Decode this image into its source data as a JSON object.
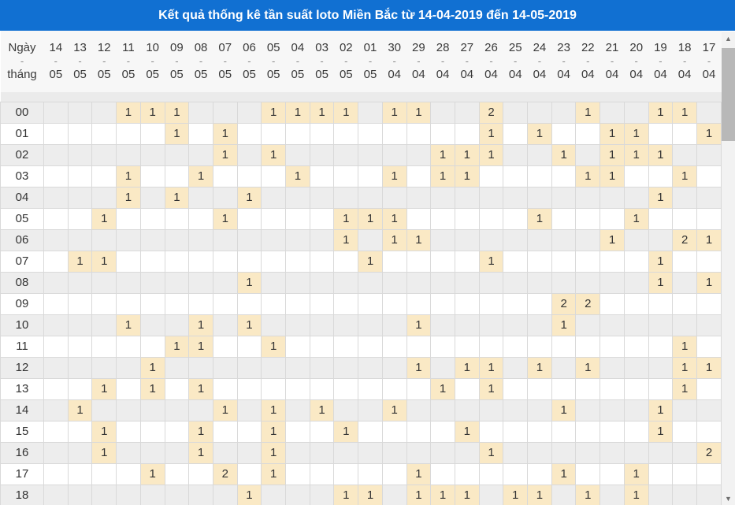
{
  "title": "Kết quả thống kê tần suất loto Miền Bắc từ 14-04-2019 đến 14-05-2019",
  "colors": {
    "titlebar_blue": "#1170d2",
    "highlight_beige": "#fae9c5",
    "red_number": "#e00000",
    "row_alt_gray": "#ededed",
    "grid_line": "#d9d9d9"
  },
  "table": {
    "corner": {
      "top": "Ngày",
      "separator": "-",
      "bottom": "tháng"
    },
    "date_columns": [
      {
        "day": "14",
        "month": "05"
      },
      {
        "day": "13",
        "month": "05"
      },
      {
        "day": "12",
        "month": "05"
      },
      {
        "day": "11",
        "month": "05"
      },
      {
        "day": "10",
        "month": "05"
      },
      {
        "day": "09",
        "month": "05"
      },
      {
        "day": "08",
        "month": "05"
      },
      {
        "day": "07",
        "month": "05"
      },
      {
        "day": "06",
        "month": "05"
      },
      {
        "day": "05",
        "month": "05"
      },
      {
        "day": "04",
        "month": "05"
      },
      {
        "day": "03",
        "month": "05"
      },
      {
        "day": "02",
        "month": "05"
      },
      {
        "day": "01",
        "month": "05"
      },
      {
        "day": "30",
        "month": "04"
      },
      {
        "day": "29",
        "month": "04"
      },
      {
        "day": "28",
        "month": "04"
      },
      {
        "day": "27",
        "month": "04"
      },
      {
        "day": "26",
        "month": "04"
      },
      {
        "day": "25",
        "month": "04"
      },
      {
        "day": "24",
        "month": "04"
      },
      {
        "day": "23",
        "month": "04"
      },
      {
        "day": "22",
        "month": "04"
      },
      {
        "day": "21",
        "month": "04"
      },
      {
        "day": "20",
        "month": "04"
      },
      {
        "day": "19",
        "month": "04"
      },
      {
        "day": "18",
        "month": "04"
      },
      {
        "day": "17",
        "month": "04"
      }
    ],
    "red_marker_prefix": "r",
    "rows": [
      {
        "label": "00",
        "cells": [
          "",
          "",
          "",
          "r1",
          "1",
          "1",
          "",
          "",
          "",
          "r1",
          "1",
          "1",
          "1",
          "",
          "1",
          "1",
          "",
          "",
          "2",
          "",
          "",
          "",
          "1",
          "",
          "",
          "1",
          "1",
          ""
        ]
      },
      {
        "label": "01",
        "cells": [
          "",
          "",
          "",
          "",
          "",
          "1",
          "",
          "1",
          "",
          "",
          "",
          "",
          "",
          "",
          "",
          "",
          "",
          "",
          "1",
          "",
          "1",
          "",
          "",
          "1",
          "1",
          "",
          "",
          "1"
        ]
      },
      {
        "label": "02",
        "cells": [
          "",
          "",
          "",
          "",
          "",
          "",
          "",
          "1",
          "",
          "1",
          "",
          "",
          "",
          "",
          "",
          "",
          "1",
          "1",
          "r1",
          "",
          "",
          "1",
          "",
          "1",
          "1",
          "1",
          "",
          ""
        ]
      },
      {
        "label": "03",
        "cells": [
          "",
          "",
          "",
          "1",
          "",
          "",
          "1",
          "",
          "",
          "",
          "1",
          "",
          "",
          "",
          "1",
          "",
          "1",
          "1",
          "",
          "",
          "",
          "",
          "1",
          "r1",
          "",
          "",
          "1",
          ""
        ]
      },
      {
        "label": "04",
        "cells": [
          "",
          "",
          "",
          "1",
          "",
          "1",
          "",
          "",
          "1",
          "",
          "",
          "",
          "",
          "",
          "",
          "",
          "",
          "",
          "",
          "",
          "",
          "",
          "",
          "",
          "",
          "1",
          "",
          ""
        ]
      },
      {
        "label": "05",
        "cells": [
          "",
          "",
          "1",
          "",
          "",
          "",
          "",
          "1",
          "",
          "",
          "",
          "",
          "1",
          "1",
          "1",
          "",
          "",
          "",
          "",
          "",
          "1",
          "",
          "",
          "",
          "1",
          "",
          "",
          ""
        ]
      },
      {
        "label": "06",
        "cells": [
          "",
          "",
          "",
          "",
          "",
          "",
          "",
          "",
          "",
          "",
          "",
          "",
          "1",
          "",
          "r1",
          "1",
          "",
          "",
          "",
          "",
          "",
          "",
          "",
          "1",
          "",
          "",
          "2",
          "1"
        ]
      },
      {
        "label": "07",
        "cells": [
          "",
          "1",
          "1",
          "",
          "",
          "",
          "",
          "",
          "",
          "",
          "",
          "",
          "",
          "1",
          "",
          "",
          "",
          "",
          "1",
          "",
          "",
          "",
          "",
          "",
          "",
          "1",
          "",
          ""
        ]
      },
      {
        "label": "08",
        "cells": [
          "",
          "",
          "",
          "",
          "",
          "",
          "",
          "",
          "1",
          "",
          "",
          "",
          "",
          "",
          "",
          "",
          "",
          "",
          "",
          "",
          "",
          "",
          "",
          "",
          "",
          "1",
          "",
          "1"
        ]
      },
      {
        "label": "09",
        "cells": [
          "",
          "",
          "",
          "",
          "",
          "",
          "",
          "",
          "",
          "",
          "",
          "",
          "",
          "",
          "",
          "",
          "",
          "",
          "",
          "",
          "",
          "2",
          "2",
          "",
          "",
          "",
          "",
          ""
        ]
      },
      {
        "label": "10",
        "cells": [
          "",
          "",
          "",
          "1",
          "",
          "",
          "1",
          "",
          "1",
          "",
          "",
          "",
          "",
          "",
          "",
          "1",
          "",
          "",
          "",
          "",
          "",
          "1",
          "",
          "",
          "",
          "",
          "",
          ""
        ]
      },
      {
        "label": "11",
        "cells": [
          "",
          "",
          "",
          "",
          "",
          "1",
          "1",
          "",
          "",
          "1",
          "",
          "",
          "",
          "",
          "",
          "",
          "",
          "",
          "",
          "",
          "",
          "",
          "",
          "",
          "",
          "",
          "1",
          ""
        ]
      },
      {
        "label": "12",
        "cells": [
          "",
          "",
          "",
          "",
          "1",
          "",
          "",
          "",
          "",
          "",
          "",
          "",
          "",
          "",
          "",
          "1",
          "",
          "1",
          "1",
          "",
          "1",
          "",
          "1",
          "",
          "",
          "",
          "1",
          "1"
        ]
      },
      {
        "label": "13",
        "cells": [
          "",
          "",
          "1",
          "",
          "1",
          "",
          "1",
          "",
          "",
          "",
          "",
          "",
          "",
          "",
          "",
          "",
          "1",
          "",
          "1",
          "",
          "",
          "",
          "",
          "",
          "",
          "",
          "1",
          ""
        ]
      },
      {
        "label": "14",
        "cells": [
          "",
          "1",
          "",
          "",
          "",
          "",
          "",
          "1",
          "",
          "1",
          "",
          "1",
          "",
          "",
          "1",
          "",
          "",
          "",
          "",
          "",
          "",
          "1",
          "",
          "",
          "",
          "1",
          "",
          ""
        ]
      },
      {
        "label": "15",
        "cells": [
          "",
          "",
          "1",
          "",
          "",
          "",
          "1",
          "",
          "",
          "1",
          "",
          "",
          "1",
          "",
          "",
          "",
          "",
          "1",
          "",
          "",
          "",
          "",
          "",
          "",
          "",
          "1",
          "",
          ""
        ]
      },
      {
        "label": "16",
        "cells": [
          "",
          "",
          "1",
          "",
          "",
          "",
          "1",
          "",
          "",
          "1",
          "",
          "",
          "",
          "",
          "",
          "",
          "",
          "",
          "1",
          "",
          "",
          "",
          "",
          "",
          "",
          "",
          "",
          "2"
        ]
      },
      {
        "label": "17",
        "cells": [
          "",
          "",
          "",
          "",
          "1",
          "",
          "",
          "2",
          "",
          "1",
          "",
          "",
          "",
          "",
          "",
          "r1",
          "",
          "",
          "",
          "",
          "",
          "1",
          "",
          "",
          "1",
          "",
          "",
          ""
        ]
      },
      {
        "label": "18",
        "cells": [
          "",
          "",
          "",
          "",
          "",
          "",
          "",
          "",
          "1",
          "",
          "",
          "",
          "1",
          "1",
          "",
          "1",
          "1",
          "1",
          "",
          "1",
          "1",
          "",
          "1",
          "",
          "1",
          "",
          "",
          ""
        ]
      }
    ]
  },
  "scrollbar": {
    "up_icon": "▲",
    "down_icon": "▼"
  }
}
